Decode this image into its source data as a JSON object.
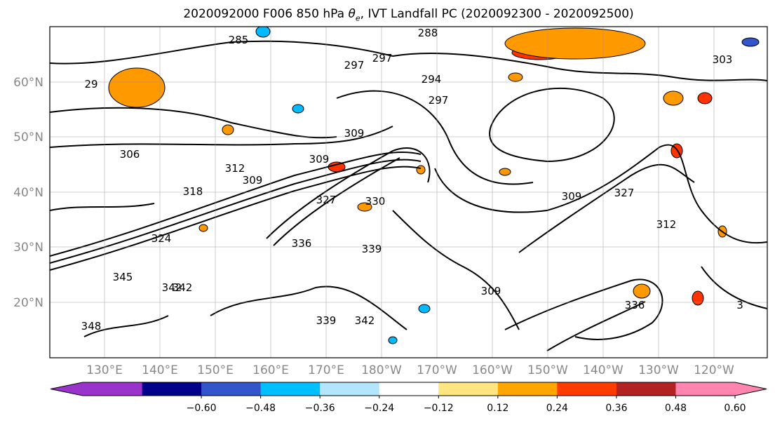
{
  "title_prefix": "2020092000 F006 850 hPa ",
  "title_symbol": "θ",
  "title_subscript": "e",
  "title_suffix": ", IVT Landfall PC (2020092300 - 2020092500)",
  "map": {
    "lat_labels": [
      "60°N",
      "50°N",
      "40°N",
      "30°N",
      "20°N"
    ],
    "lon_labels": [
      "130°E",
      "140°E",
      "150°E",
      "160°E",
      "170°E",
      "180°W",
      "170°W",
      "160°W",
      "150°W",
      "140°W",
      "130°W",
      "120°W"
    ],
    "contour_labels": [
      "285",
      "288",
      "297",
      "297",
      "303",
      "29",
      "306",
      "309",
      "309",
      "312",
      "309",
      "318",
      "324",
      "327",
      "330",
      "336",
      "339",
      "342",
      "342",
      "345",
      "348",
      "339",
      "342",
      "312",
      "327",
      "309",
      "294",
      "297",
      "309",
      "336",
      "3"
    ],
    "grid": true,
    "fill_colors": {
      "positive_high": "#ff3300",
      "positive_mid": "#ff9900",
      "positive_low": "#ffee88",
      "negative_mid": "#00bbff",
      "negative_high": "#3355cc"
    }
  },
  "colorbar": {
    "colors": [
      "#9933cc",
      "#00008b",
      "#3355cc",
      "#00bfff",
      "#b3e5fc",
      "#ffffff",
      "#ffe680",
      "#ffa500",
      "#ff3c00",
      "#b22222",
      "#ff85b0"
    ],
    "ticks": [
      "−0.60",
      "−0.48",
      "−0.36",
      "−0.24",
      "−0.12",
      "0.12",
      "0.24",
      "0.36",
      "0.48",
      "0.60"
    ]
  }
}
